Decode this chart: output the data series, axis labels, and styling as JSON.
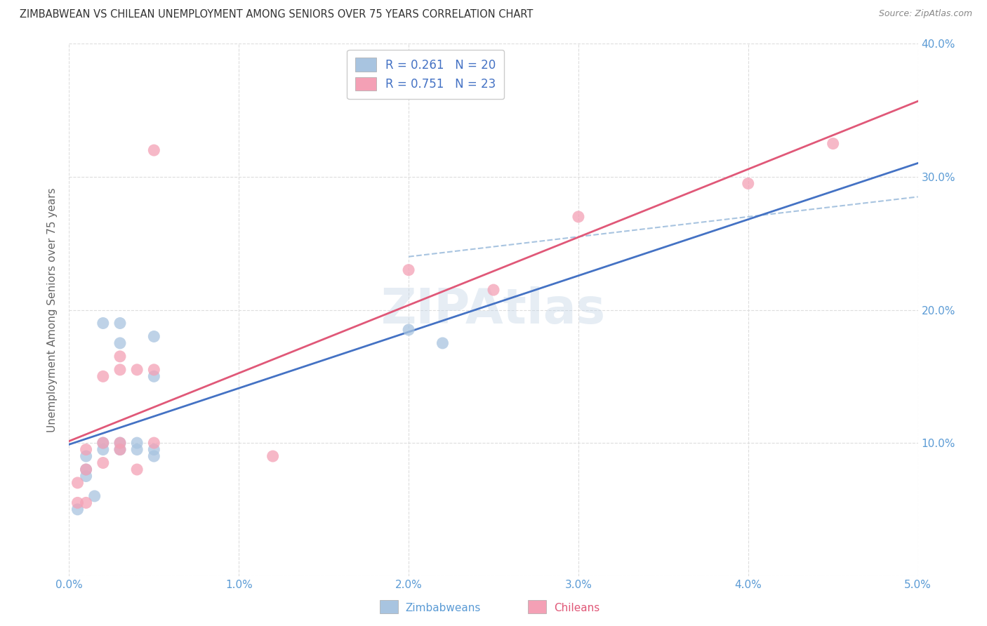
{
  "title": "ZIMBABWEAN VS CHILEAN UNEMPLOYMENT AMONG SENIORS OVER 75 YEARS CORRELATION CHART",
  "source": "Source: ZipAtlas.com",
  "ylabel": "Unemployment Among Seniors over 75 years",
  "xlim": [
    0.0,
    0.05
  ],
  "ylim": [
    0.0,
    0.4
  ],
  "xticks": [
    0.0,
    0.01,
    0.02,
    0.03,
    0.04,
    0.05
  ],
  "yticks": [
    0.0,
    0.1,
    0.2,
    0.3,
    0.4
  ],
  "xtick_labels": [
    "0.0%",
    "1.0%",
    "2.0%",
    "3.0%",
    "4.0%",
    "5.0%"
  ],
  "ytick_labels_right": [
    "",
    "10.0%",
    "20.0%",
    "30.0%",
    "40.0%"
  ],
  "zim_color": "#a8c4e0",
  "chile_color": "#f4a0b5",
  "zim_line_color": "#4472c4",
  "chile_line_color": "#e05878",
  "zim_R": 0.261,
  "zim_N": 20,
  "chile_R": 0.751,
  "chile_N": 23,
  "legend_label_zim": "Zimbabweans",
  "legend_label_chile": "Chileans",
  "watermark": "ZIPAtlas",
  "zim_x": [
    0.0005,
    0.001,
    0.001,
    0.001,
    0.0015,
    0.002,
    0.002,
    0.002,
    0.003,
    0.003,
    0.003,
    0.003,
    0.004,
    0.004,
    0.005,
    0.005,
    0.005,
    0.005,
    0.02,
    0.022
  ],
  "zim_y": [
    0.05,
    0.075,
    0.08,
    0.09,
    0.06,
    0.095,
    0.1,
    0.19,
    0.095,
    0.1,
    0.175,
    0.19,
    0.095,
    0.1,
    0.09,
    0.095,
    0.15,
    0.18,
    0.185,
    0.175
  ],
  "chile_x": [
    0.0005,
    0.0005,
    0.001,
    0.001,
    0.001,
    0.002,
    0.002,
    0.002,
    0.003,
    0.003,
    0.003,
    0.003,
    0.004,
    0.004,
    0.005,
    0.005,
    0.005,
    0.012,
    0.02,
    0.025,
    0.03,
    0.04,
    0.045
  ],
  "chile_y": [
    0.055,
    0.07,
    0.055,
    0.08,
    0.095,
    0.085,
    0.1,
    0.15,
    0.095,
    0.1,
    0.155,
    0.165,
    0.08,
    0.155,
    0.1,
    0.155,
    0.32,
    0.09,
    0.23,
    0.215,
    0.27,
    0.295,
    0.325
  ],
  "background_color": "#ffffff",
  "grid_color": "#dddddd",
  "title_color": "#333333",
  "tick_color": "#5b9bd5",
  "legend_text_color": "#4472c4",
  "bottom_legend_color_zim": "#5b9bd5",
  "bottom_legend_color_chile": "#e05878"
}
